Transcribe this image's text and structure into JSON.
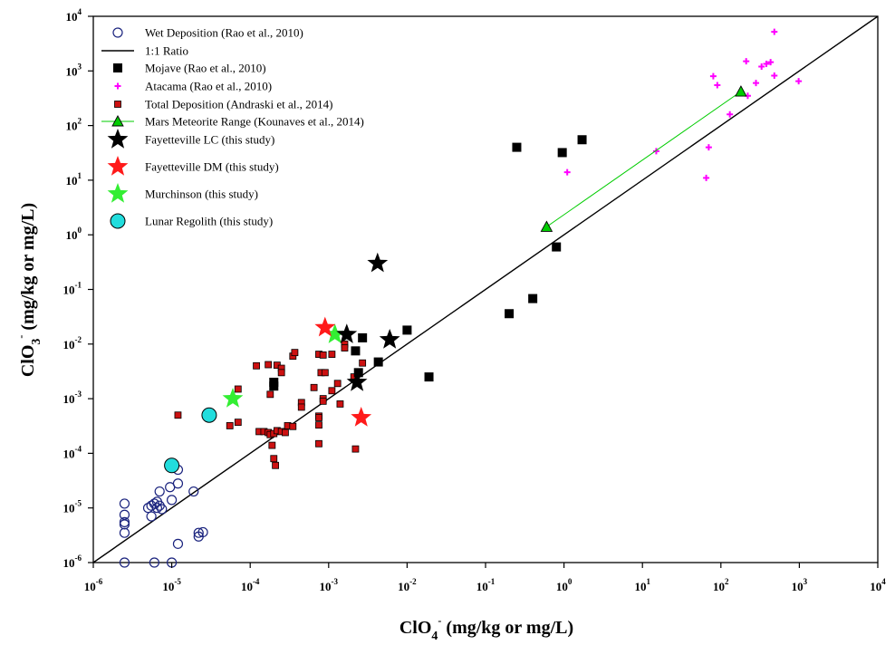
{
  "chart_data": {
    "type": "scatter",
    "xscale": "log",
    "yscale": "log",
    "xlim": [
      1e-06,
      10000
    ],
    "ylim": [
      1e-06,
      10000
    ],
    "grid": false,
    "legend_position": "top-left",
    "xlabel": {
      "main": "ClO",
      "sub": "4",
      "sup": "-",
      "rest": " (mg/kg or mg/L)"
    },
    "ylabel": {
      "main": "ClO",
      "sub": "3",
      "sup": "-",
      "rest": " (mg/kg or mg/L)"
    },
    "tick_exponents": [
      -6,
      -5,
      -4,
      -3,
      -2,
      -1,
      0,
      1,
      2,
      3,
      4
    ],
    "tick_base": "10",
    "colors": {
      "wet": "#1a237e",
      "mojave": "#000000",
      "atacama": "#ff00ff",
      "total": "#cc1111",
      "mars": "#00cc00",
      "fay_lc": "#000000",
      "fay_dm": "#ff1a1a",
      "murch": "#33ee33",
      "lunar": "#22dddd"
    },
    "series": [
      {
        "key": "wet",
        "name": "Wet Deposition (Rao et al., 2010)",
        "marker": "open-circle",
        "points": [
          [
            2.5e-06,
            1.2e-05
          ],
          [
            2.5e-06,
            7.5e-06
          ],
          [
            2.5e-06,
            5.5e-06
          ],
          [
            2.5e-06,
            5e-06
          ],
          [
            2.5e-06,
            3.5e-06
          ],
          [
            2.5e-06,
            1e-06
          ],
          [
            5e-06,
            1e-05
          ],
          [
            5.5e-06,
            1.1e-05
          ],
          [
            6e-06,
            1.2e-05
          ],
          [
            6.5e-06,
            1.3e-05
          ],
          [
            6.5e-06,
            1e-05
          ],
          [
            7e-06,
            1.1e-05
          ],
          [
            7e-06,
            2e-05
          ],
          [
            7.5e-06,
            9.5e-06
          ],
          [
            5.5e-06,
            7e-06
          ],
          [
            9.5e-06,
            2.4e-05
          ],
          [
            1e-05,
            1.4e-05
          ],
          [
            1.2e-05,
            2.8e-05
          ],
          [
            1.2e-05,
            5e-05
          ],
          [
            1.9e-05,
            2e-05
          ],
          [
            2.2e-05,
            3.5e-06
          ],
          [
            2.2e-05,
            3e-06
          ],
          [
            2.5e-05,
            3.6e-06
          ],
          [
            1.2e-05,
            2.2e-06
          ],
          [
            6e-06,
            1e-06
          ],
          [
            1e-05,
            1e-06
          ]
        ]
      },
      {
        "key": "ratio",
        "name": "1:1 Ratio",
        "marker": "line",
        "points": [
          [
            1e-06,
            1e-06
          ],
          [
            10000,
            10000
          ]
        ]
      },
      {
        "key": "mojave",
        "name": "Mojave (Rao et al., 2010)",
        "marker": "filled-square",
        "points": [
          [
            0.25,
            40
          ],
          [
            0.95,
            32
          ],
          [
            1.7,
            55
          ],
          [
            0.2,
            0.036
          ],
          [
            0.4,
            0.068
          ],
          [
            0.8,
            0.6
          ],
          [
            0.01,
            0.018
          ],
          [
            0.019,
            0.0025
          ],
          [
            0.0043,
            0.0047
          ],
          [
            0.0027,
            0.013
          ],
          [
            0.0022,
            0.0075
          ],
          [
            0.0024,
            0.003
          ],
          [
            0.0002,
            0.002
          ],
          [
            0.0002,
            0.0017
          ]
        ]
      },
      {
        "key": "atacama",
        "name": "Atacama (Rao et al., 2010)",
        "marker": "plus",
        "points": [
          [
            480,
            5200
          ],
          [
            80,
            800
          ],
          [
            90,
            550
          ],
          [
            210,
            1500
          ],
          [
            330,
            1200
          ],
          [
            380,
            1350
          ],
          [
            430,
            1450
          ],
          [
            280,
            600
          ],
          [
            480,
            820
          ],
          [
            980,
            650
          ],
          [
            220,
            350
          ],
          [
            130,
            160
          ],
          [
            70,
            40
          ],
          [
            15,
            34
          ],
          [
            65,
            11
          ],
          [
            1.1,
            14
          ]
        ]
      },
      {
        "key": "total",
        "name": "Total Deposition (Andraski et al., 2014)",
        "marker": "small-square",
        "points": [
          [
            1.2e-05,
            0.0005
          ],
          [
            5.5e-05,
            0.00032
          ],
          [
            7e-05,
            0.00037
          ],
          [
            7e-05,
            0.0015
          ],
          [
            0.00012,
            0.004
          ],
          [
            0.00017,
            0.0042
          ],
          [
            0.00022,
            0.0041
          ],
          [
            0.00025,
            0.0036
          ],
          [
            0.00025,
            0.003
          ],
          [
            0.00018,
            0.0012
          ],
          [
            0.00035,
            0.006
          ],
          [
            0.00037,
            0.007
          ],
          [
            0.00075,
            0.0065
          ],
          [
            0.00085,
            0.0063
          ],
          [
            0.0011,
            0.0065
          ],
          [
            0.0008,
            0.003
          ],
          [
            0.0009,
            0.003
          ],
          [
            0.00065,
            0.0016
          ],
          [
            0.00085,
            0.001
          ],
          [
            0.00085,
            0.0009
          ],
          [
            0.0016,
            0.01
          ],
          [
            0.0016,
            0.0085
          ],
          [
            0.0027,
            0.0045
          ],
          [
            0.0021,
            0.0025
          ],
          [
            0.0013,
            0.0019
          ],
          [
            0.00045,
            0.00085
          ],
          [
            0.00045,
            0.0007
          ],
          [
            0.00075,
            0.00048
          ],
          [
            0.00075,
            0.00045
          ],
          [
            0.00075,
            0.00033
          ],
          [
            0.0011,
            0.0014
          ],
          [
            0.00013,
            0.00025
          ],
          [
            0.00015,
            0.00025
          ],
          [
            0.00017,
            0.00024
          ],
          [
            0.00018,
            0.00022
          ],
          [
            0.0002,
            0.00023
          ],
          [
            0.00022,
            0.00026
          ],
          [
            0.00025,
            0.00025
          ],
          [
            0.00028,
            0.00024
          ],
          [
            0.0003,
            0.00032
          ],
          [
            0.00035,
            0.00031
          ],
          [
            0.00019,
            0.00014
          ],
          [
            0.0002,
            8e-05
          ],
          [
            0.00021,
            6e-05
          ],
          [
            0.00075,
            0.00015
          ],
          [
            0.0022,
            0.00012
          ],
          [
            0.0014,
            0.0008
          ]
        ]
      },
      {
        "key": "mars",
        "name": "Mars Meteorite Range (Kounaves et al., 2014)",
        "marker": "triangle-line",
        "points": [
          [
            0.6,
            1.4
          ],
          [
            180,
            420
          ]
        ]
      },
      {
        "key": "fay_lc",
        "name": "Fayetteville LC (this study)",
        "marker": "star",
        "points": [
          [
            0.0042,
            0.3
          ],
          [
            0.0017,
            0.015
          ],
          [
            0.006,
            0.012
          ],
          [
            0.0023,
            0.002
          ]
        ]
      },
      {
        "key": "fay_dm",
        "name": "Fayetteville DM (this study)",
        "marker": "star",
        "points": [
          [
            0.0009,
            0.02
          ],
          [
            0.0026,
            0.00045
          ]
        ]
      },
      {
        "key": "murch",
        "name": "Murchinson (this study)",
        "marker": "star",
        "points": [
          [
            0.0012,
            0.015
          ],
          [
            6e-05,
            0.001
          ]
        ]
      },
      {
        "key": "lunar",
        "name": "Lunar Regolith (this study)",
        "marker": "big-circle",
        "points": [
          [
            1e-05,
            6e-05
          ],
          [
            3e-05,
            0.0005
          ]
        ]
      }
    ]
  }
}
